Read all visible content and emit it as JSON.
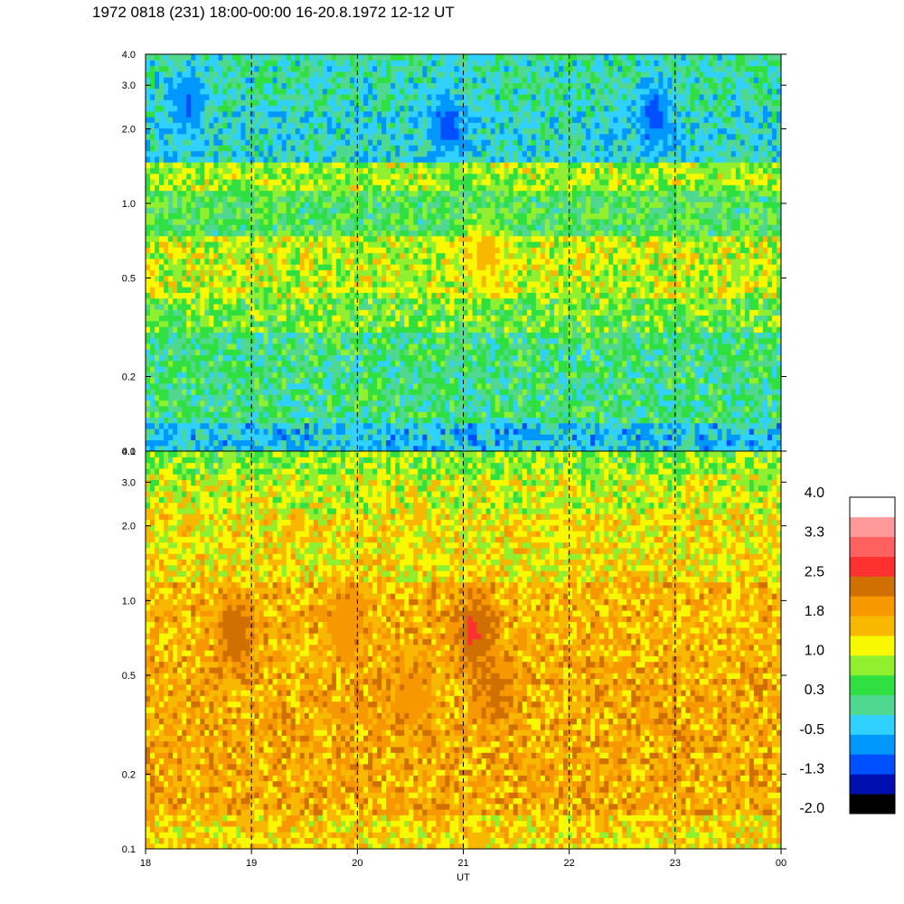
{
  "header": {
    "title": "1972 0818 (231) 18:00-00:00 16-20.8.1972  12-12 UT"
  },
  "chart_data": {
    "type": "heatmap",
    "title": "1972 0818 (231) 18:00-00:00 16-20.8.1972  12-12 UT",
    "xlabel": "UT",
    "ylabel": "",
    "x_ticks": [
      "18",
      "19",
      "20",
      "21",
      "22",
      "23",
      "00"
    ],
    "xlim": [
      18,
      24
    ],
    "y_scale": "log",
    "ylim": [
      0.1,
      4.0
    ],
    "y_ticks": [
      {
        "value": 0.1,
        "label": "0.1"
      },
      {
        "value": 0.2,
        "label": "0.2"
      },
      {
        "value": 0.5,
        "label": "0.5"
      },
      {
        "value": 1.0,
        "label": "1.0"
      },
      {
        "value": 2.0,
        "label": "2.0"
      },
      {
        "value": 3.0,
        "label": "3.0"
      },
      {
        "value": 4.0,
        "label": "4.0"
      }
    ],
    "dashed_vlines": [
      19,
      20,
      21,
      22,
      23
    ],
    "panels": [
      {
        "name": "",
        "bands": [
          {
            "y_from": 0.1,
            "y_to": 0.13,
            "value": -0.4
          },
          {
            "y_from": 0.13,
            "y_to": 0.3,
            "value": 0.2
          },
          {
            "y_from": 0.3,
            "y_to": 0.42,
            "value": 0.6
          },
          {
            "y_from": 0.42,
            "y_to": 0.75,
            "value": 1.0
          },
          {
            "y_from": 0.75,
            "y_to": 1.1,
            "value": 0.4
          },
          {
            "y_from": 1.1,
            "y_to": 1.45,
            "value": 0.9
          },
          {
            "y_from": 1.45,
            "y_to": 2.4,
            "value": -0.2
          },
          {
            "y_from": 2.4,
            "y_to": 4.0,
            "value": 0.0
          }
        ],
        "spots": [
          {
            "x": 21.2,
            "y": 0.62,
            "value": 1.5
          },
          {
            "x": 20.85,
            "y": 2.1,
            "value": -1.0
          },
          {
            "x": 22.8,
            "y": 2.3,
            "value": -1.0
          },
          {
            "x": 18.4,
            "y": 2.6,
            "value": -0.9
          }
        ]
      },
      {
        "name": "",
        "bands": [
          {
            "y_from": 0.1,
            "y_to": 0.14,
            "value": 1.4
          },
          {
            "y_from": 0.14,
            "y_to": 0.6,
            "value": 1.75
          },
          {
            "y_from": 0.6,
            "y_to": 1.2,
            "value": 1.65
          },
          {
            "y_from": 1.2,
            "y_to": 2.2,
            "value": 1.3
          },
          {
            "y_from": 2.2,
            "y_to": 3.2,
            "value": 1.05
          },
          {
            "y_from": 3.2,
            "y_to": 4.0,
            "value": 0.75
          }
        ],
        "spots": [
          {
            "x": 21.1,
            "y": 0.75,
            "value": 2.6
          },
          {
            "x": 21.3,
            "y": 0.45,
            "value": 2.2
          },
          {
            "x": 18.85,
            "y": 0.75,
            "value": 2.5
          },
          {
            "x": 19.9,
            "y": 0.85,
            "value": 2.1
          },
          {
            "x": 20.5,
            "y": 0.4,
            "value": 2.1
          }
        ]
      }
    ],
    "colorbar": {
      "ticks": [
        "4.0",
        "3.3",
        "2.5",
        "1.8",
        "1.0",
        "0.3",
        "-0.5",
        "-1.3",
        "-2.0"
      ],
      "range": [
        -2.0,
        4.0
      ],
      "colors": [
        "#000000",
        "#0010b0",
        "#0050ff",
        "#0098ff",
        "#30d0ff",
        "#50d890",
        "#30e040",
        "#90f030",
        "#f8f800",
        "#f8b800",
        "#f89800",
        "#d07000",
        "#ff3030",
        "#ff6060",
        "#ff9898",
        "#ffffff"
      ]
    }
  }
}
